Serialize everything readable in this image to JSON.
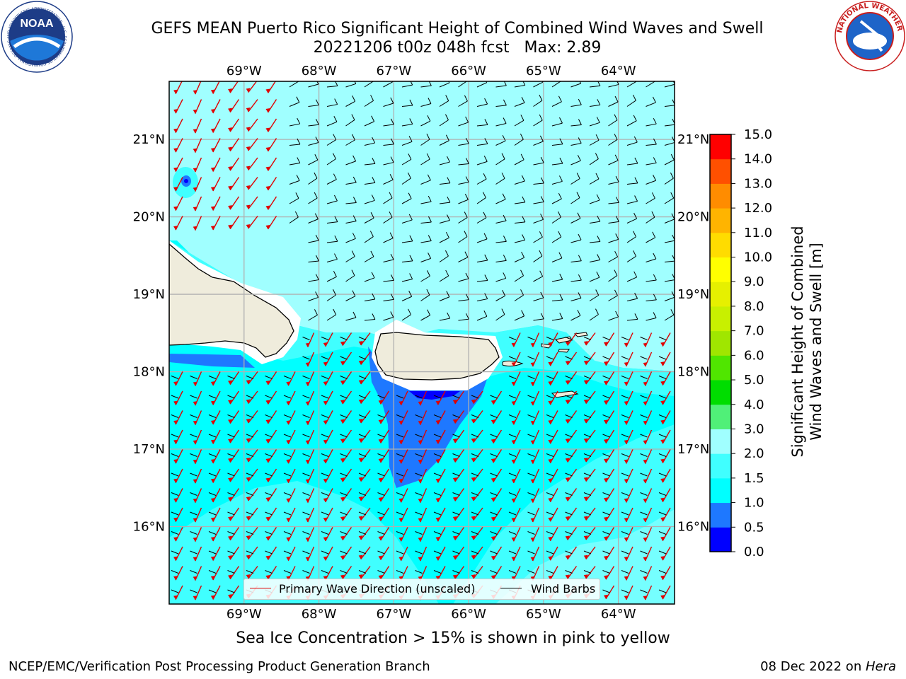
{
  "header": {
    "title_line1": "GEFS MEAN Puerto Rico Significant Height of Combined Wind Waves and Swell",
    "title_line2": "20221206 t00z 048h fcst   Max: 2.89"
  },
  "logos": {
    "noaa": {
      "text": "NOAA",
      "ring_text": "NATIONAL OCEANIC AND ATMOSPHERIC ADMINISTRATION · U.S. DEPARTMENT OF COMMERCE"
    },
    "nws": {
      "ring_text": "NATIONAL WEATHER SERVICE"
    }
  },
  "map": {
    "lon_range": [
      -70.0,
      -63.25
    ],
    "lat_range": [
      15.0,
      21.75
    ],
    "lon_ticks": [
      {
        "value": -69,
        "label": "69°W"
      },
      {
        "value": -68,
        "label": "68°W"
      },
      {
        "value": -67,
        "label": "67°W"
      },
      {
        "value": -66,
        "label": "66°W"
      },
      {
        "value": -65,
        "label": "65°W"
      },
      {
        "value": -64,
        "label": "64°W"
      }
    ],
    "lat_ticks": [
      {
        "value": 16,
        "label": "16°N"
      },
      {
        "value": 17,
        "label": "17°N"
      },
      {
        "value": 18,
        "label": "18°N"
      },
      {
        "value": 19,
        "label": "19°N"
      },
      {
        "value": 20,
        "label": "20°N"
      },
      {
        "value": 21,
        "label": "21°N"
      }
    ],
    "colors": {
      "ocean_base": "#00ffff",
      "band_2_3": "#a0ffff",
      "band_15_2": "#40ffff",
      "band_05_1": "#1e78ff",
      "band_0_05": "#0000ff",
      "land": "#efecdc",
      "wave_arrow": "#e00000",
      "barb": "#000000",
      "grid": "#b0b0b0"
    },
    "legend": {
      "wave_label": "Primary Wave Direction (unscaled)",
      "barb_label": "Wind Barbs"
    }
  },
  "colorbar": {
    "label_line1": "Significant Height of Combined",
    "label_line2": "Wind Waves and Swell [m]",
    "levels": [
      "0.0",
      "0.5",
      "1.0",
      "1.5",
      "2.0",
      "3.0",
      "4.0",
      "5.0",
      "6.0",
      "7.0",
      "8.0",
      "9.0",
      "10.0",
      "11.0",
      "12.0",
      "13.0",
      "14.0",
      "15.0"
    ],
    "colors": [
      "#0000ff",
      "#1e78ff",
      "#00ffff",
      "#40ffff",
      "#a0ffff",
      "#50f078",
      "#00dd00",
      "#50e600",
      "#a0e600",
      "#c8f000",
      "#e6f000",
      "#ffff00",
      "#ffdc00",
      "#ffb400",
      "#ff8c00",
      "#ff5000",
      "#ff0000"
    ]
  },
  "note": "Sea Ice Concentration > 15% is shown in pink to yellow",
  "footer": {
    "left": "NCEP/EMC/Verification Post Processing Product Generation Branch",
    "date": "08 Dec 2022 on ",
    "machine": "Hera"
  }
}
